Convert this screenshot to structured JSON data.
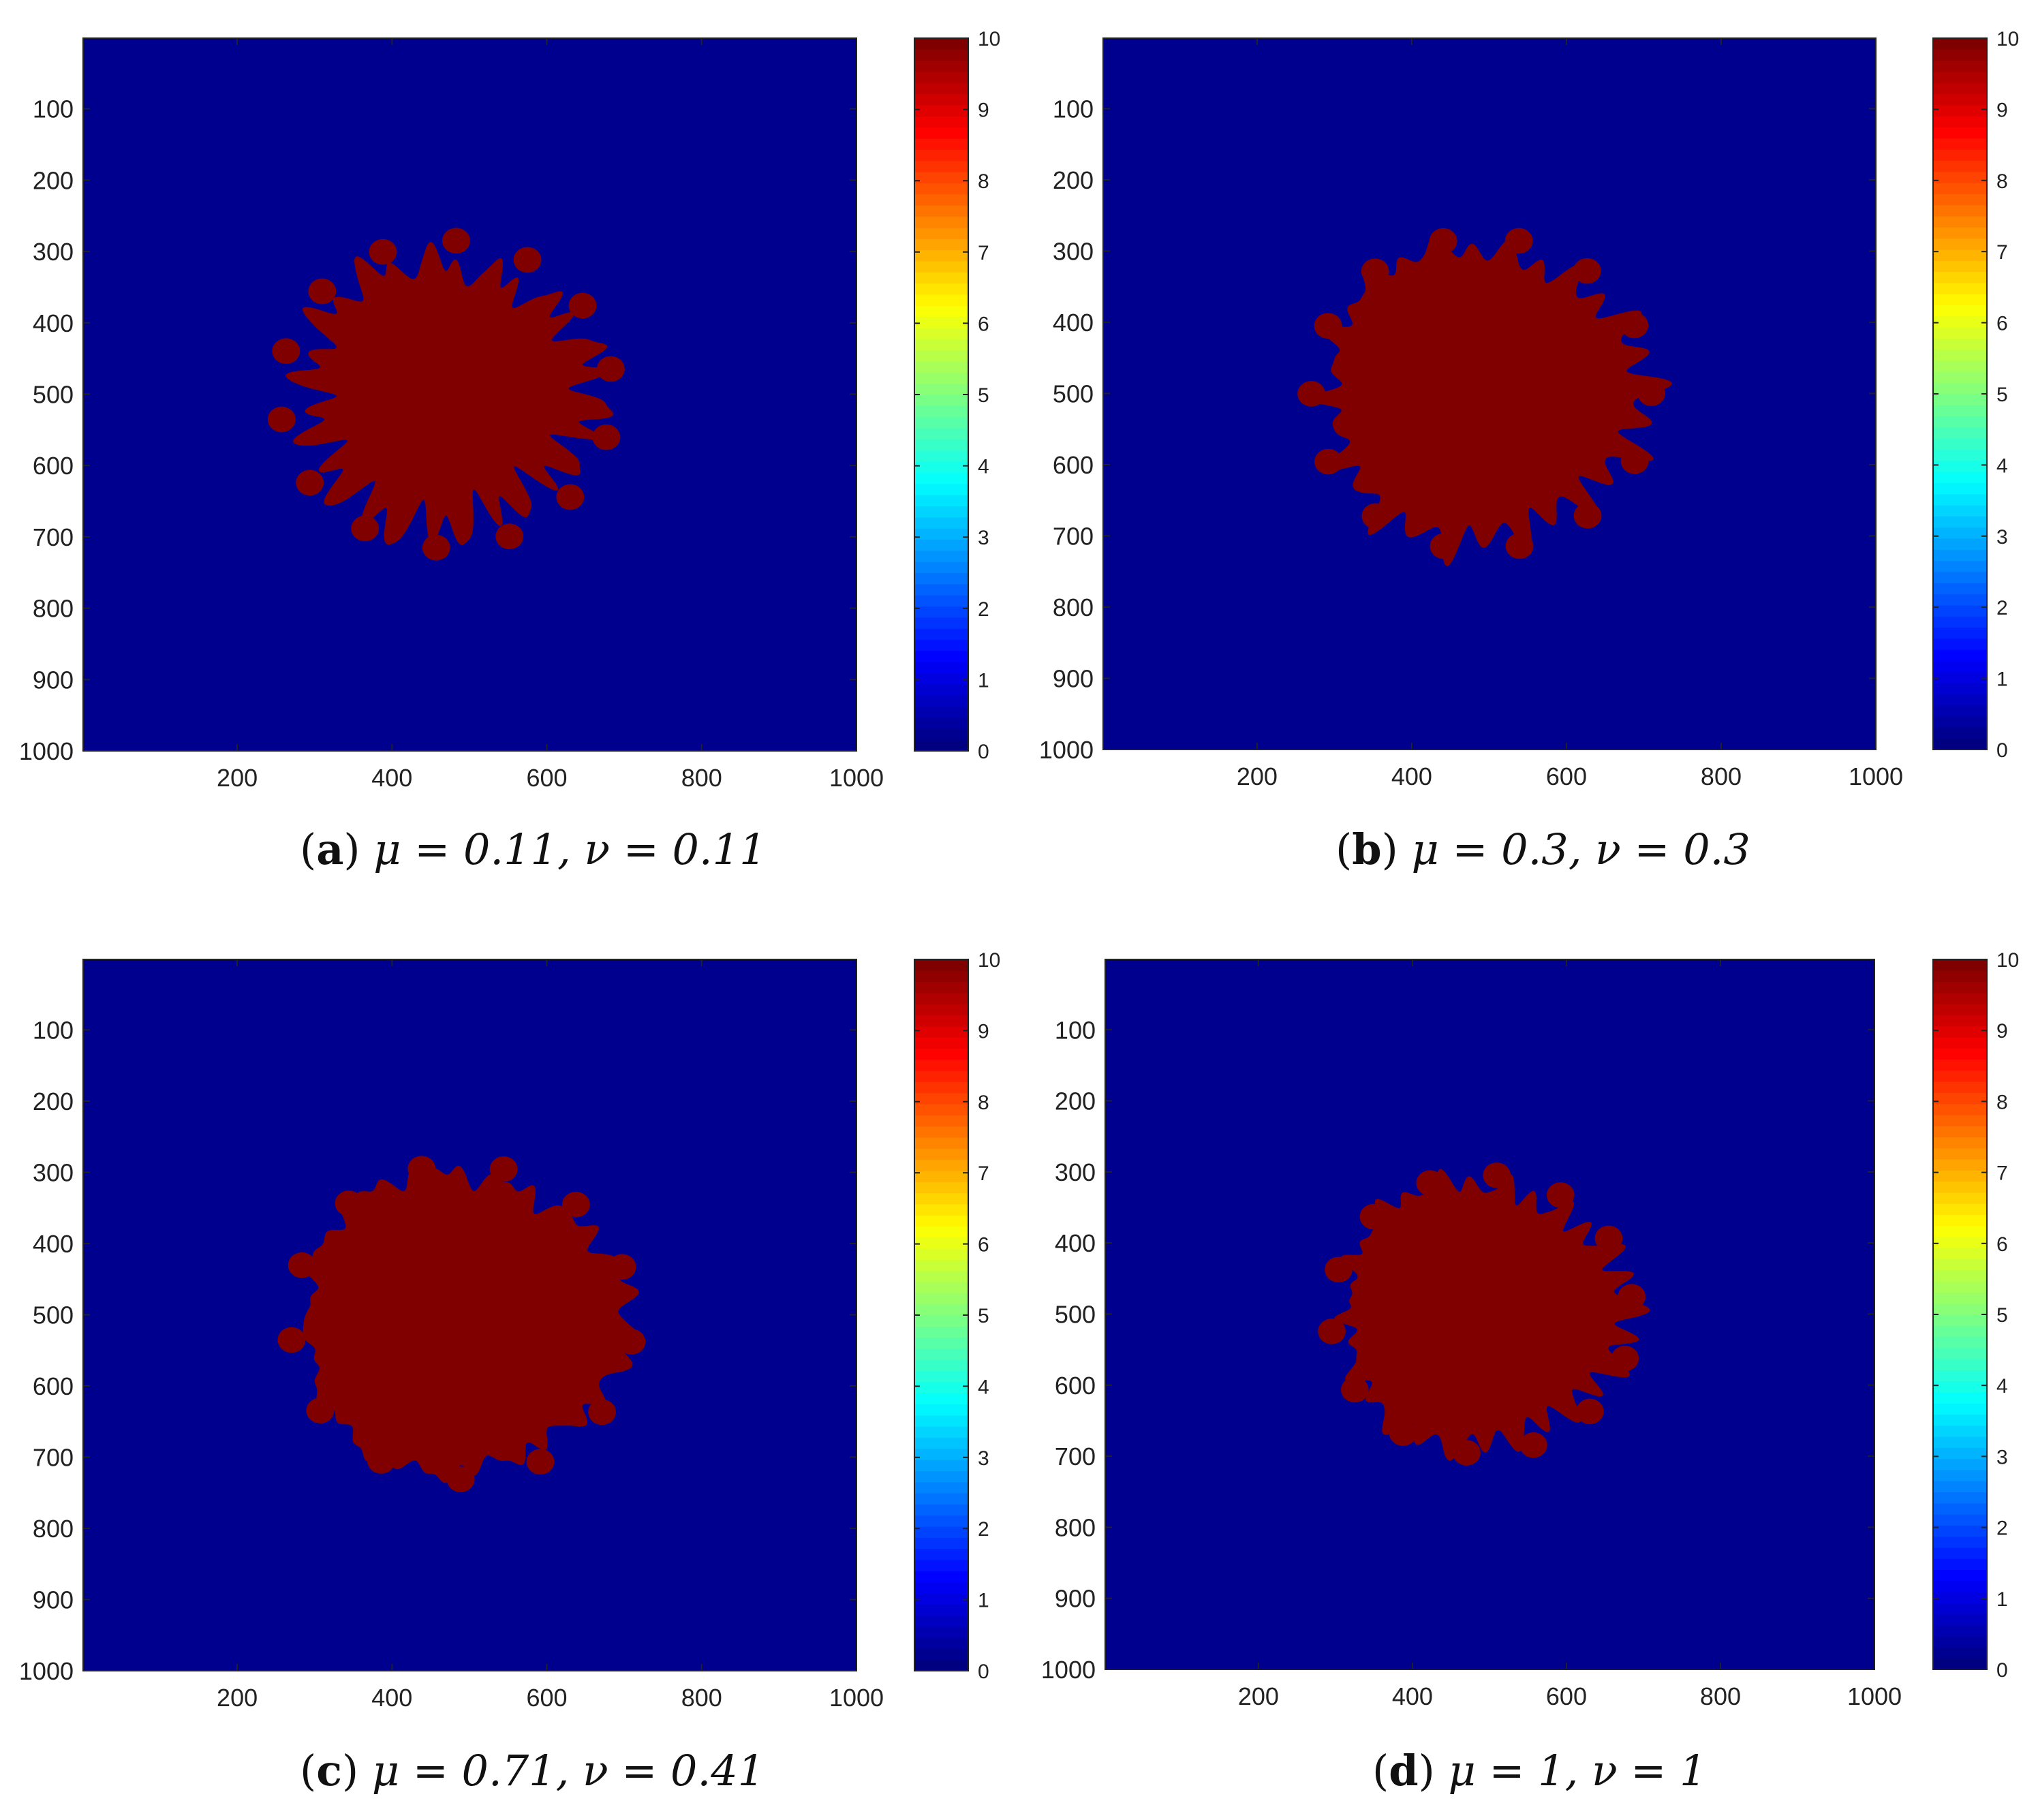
{
  "colors": {
    "background": "#00008F",
    "blob": "#800000",
    "axis": "#222222"
  },
  "colormap": {
    "name": "jet",
    "min": 0,
    "max": 10,
    "ticks": [
      "0",
      "1",
      "2",
      "3",
      "4",
      "5",
      "6",
      "7",
      "8",
      "9",
      "10"
    ]
  },
  "chart_data": [
    {
      "type": "heatmap",
      "panel": "a",
      "caption_letter": "a",
      "caption_math": "μ = 0.11, ν = 0.11",
      "xlim": [
        1,
        1000
      ],
      "ylim": [
        1,
        1000
      ],
      "y_reversed": true,
      "x_ticks": [
        "200",
        "400",
        "600",
        "800",
        "1000"
      ],
      "y_ticks": [
        "100",
        "200",
        "300",
        "400",
        "500",
        "600",
        "700",
        "800",
        "900",
        "1000"
      ],
      "value_outside": 0,
      "value_inside": 10,
      "blob": {
        "center": [
          470,
          500
        ],
        "radius": 175,
        "lobes": 14,
        "lobe_amp": 45,
        "lobe_count_small": 5
      }
    },
    {
      "type": "heatmap",
      "panel": "b",
      "caption_letter": "b",
      "caption_math": "μ = 0.3, ν = 0.3",
      "xlim": [
        1,
        1000
      ],
      "ylim": [
        1,
        1000
      ],
      "y_reversed": true,
      "x_ticks": [
        "200",
        "400",
        "600",
        "800",
        "1000"
      ],
      "y_ticks": [
        "100",
        "200",
        "300",
        "400",
        "500",
        "600",
        "700",
        "800",
        "900",
        "1000"
      ],
      "value_outside": 0,
      "value_inside": 10,
      "blob": {
        "center": [
          490,
          500
        ],
        "radius": 200,
        "lobes": 14,
        "lobe_amp": 22,
        "lobe_count_small": 0
      }
    },
    {
      "type": "heatmap",
      "panel": "c",
      "caption_letter": "c",
      "caption_math": "μ = 0.71, ν = 0.41",
      "xlim": [
        1,
        1000
      ],
      "ylim": [
        1,
        1000
      ],
      "y_reversed": true,
      "x_ticks": [
        "200",
        "400",
        "600",
        "800",
        "1000"
      ],
      "y_ticks": [
        "100",
        "200",
        "300",
        "400",
        "500",
        "600",
        "700",
        "800",
        "900",
        "1000"
      ],
      "value_outside": 0,
      "value_inside": 10,
      "blob": {
        "center": [
          490,
          510
        ],
        "radius": 205,
        "lobes": 13,
        "lobe_amp": 18,
        "lobe_count_small": 0
      }
    },
    {
      "type": "heatmap",
      "panel": "d",
      "caption_letter": "d",
      "caption_math": "μ = 1, ν = 1",
      "xlim": [
        1,
        1000
      ],
      "ylim": [
        1,
        1000
      ],
      "y_reversed": true,
      "x_ticks": [
        "200",
        "400",
        "600",
        "800",
        "1000"
      ],
      "y_ticks": [
        "100",
        "200",
        "300",
        "400",
        "500",
        "600",
        "700",
        "800",
        "900",
        "1000"
      ],
      "value_outside": 0,
      "value_inside": 10,
      "blob": {
        "center": [
          490,
          500
        ],
        "radius": 180,
        "lobes": 14,
        "lobe_amp": 18,
        "lobe_count_small": 0
      }
    }
  ]
}
